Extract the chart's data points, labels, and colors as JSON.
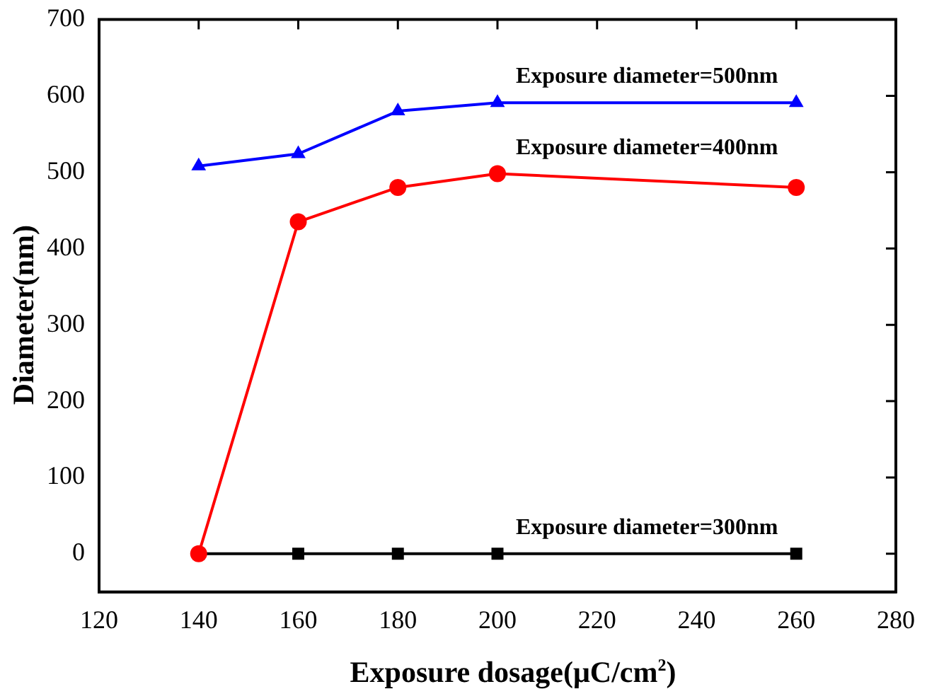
{
  "chart_data": {
    "type": "line",
    "xlabel": "Exposure dosage(μC/cm$^{2}$)",
    "ylabel": "Diameter(nm)",
    "xlim": [
      120,
      280
    ],
    "xticks": [
      120,
      140,
      160,
      180,
      200,
      220,
      240,
      260,
      280
    ],
    "ylim": [
      -50,
      700
    ],
    "yticks": [
      0,
      100,
      200,
      300,
      400,
      500,
      600,
      700
    ],
    "grid": false,
    "legend": false,
    "line_style": "solid",
    "x": [
      140,
      160,
      180,
      200,
      260
    ],
    "series": [
      {
        "name": "Exposure diameter=300nm",
        "color": "#000000",
        "marker": "square",
        "values": [
          0,
          0,
          0,
          0,
          0
        ]
      },
      {
        "name": "Exposure diameter=400nm",
        "color": "#ff0000",
        "marker": "circle",
        "values": [
          0,
          435,
          480,
          498,
          480
        ]
      },
      {
        "name": "Exposure diameter=500nm",
        "color": "#0000ff",
        "marker": "triangle",
        "values": [
          508,
          524,
          580,
          591,
          591
        ]
      }
    ]
  }
}
